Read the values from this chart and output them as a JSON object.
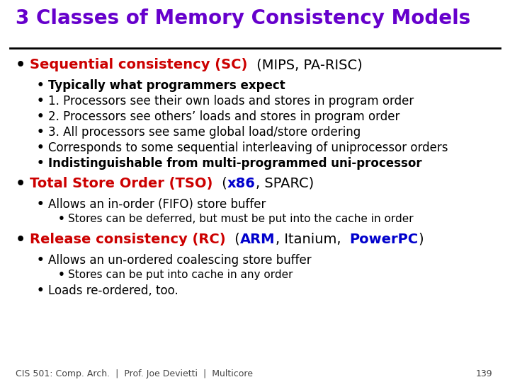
{
  "title": "3 Classes of Memory Consistency Models",
  "title_color": "#6600cc",
  "bg_color": "#ffffff",
  "footer": "CIS 501: Comp. Arch.  |  Prof. Joe Devietti  |  Multicore",
  "footer_page": "139",
  "title_fontsize": 20,
  "main_fontsize": 14,
  "sub1_fontsize": 12,
  "sub2_fontsize": 11,
  "footer_fontsize": 9,
  "sections": [
    {
      "parts": [
        {
          "text": "Sequential consistency (SC) ",
          "color": "#cc0000",
          "bold": true
        },
        {
          "text": " (MIPS, PA-RISC)",
          "color": "#000000",
          "bold": false
        }
      ],
      "sub": [
        {
          "indent": 1,
          "parts": [
            {
              "text": "Typically what programmers expect",
              "color": "#000000",
              "bold": true
            }
          ]
        },
        {
          "indent": 1,
          "parts": [
            {
              "text": "1. Processors see their own loads and stores in program order",
              "color": "#000000",
              "bold": false
            }
          ]
        },
        {
          "indent": 1,
          "parts": [
            {
              "text": "2. Processors see others’ loads and stores in program order",
              "color": "#000000",
              "bold": false
            }
          ]
        },
        {
          "indent": 1,
          "parts": [
            {
              "text": "3. All processors see same global load/store ordering",
              "color": "#000000",
              "bold": false
            }
          ]
        },
        {
          "indent": 1,
          "parts": [
            {
              "text": "Corresponds to some sequential interleaving of uniprocessor orders",
              "color": "#000000",
              "bold": false
            }
          ]
        },
        {
          "indent": 1,
          "parts": [
            {
              "text": "Indistinguishable from multi-programmed uni-processor",
              "color": "#000000",
              "bold": true
            }
          ]
        }
      ]
    },
    {
      "parts": [
        {
          "text": "Total Store Order (TSO) ",
          "color": "#cc0000",
          "bold": true
        },
        {
          "text": " (",
          "color": "#000000",
          "bold": false
        },
        {
          "text": "x86",
          "color": "#0000cc",
          "bold": true
        },
        {
          "text": ", SPARC)",
          "color": "#000000",
          "bold": false
        }
      ],
      "sub": [
        {
          "indent": 1,
          "parts": [
            {
              "text": "Allows an in-order (FIFO) store buffer",
              "color": "#000000",
              "bold": false
            }
          ]
        },
        {
          "indent": 2,
          "parts": [
            {
              "text": "Stores can be deferred, but must be put into the cache in order",
              "color": "#000000",
              "bold": false
            }
          ]
        }
      ]
    },
    {
      "parts": [
        {
          "text": "Release consistency (RC) ",
          "color": "#cc0000",
          "bold": true
        },
        {
          "text": " (",
          "color": "#000000",
          "bold": false
        },
        {
          "text": "ARM",
          "color": "#0000cc",
          "bold": true
        },
        {
          "text": ", Itanium,  ",
          "color": "#000000",
          "bold": false
        },
        {
          "text": "PowerPC",
          "color": "#0000cc",
          "bold": true
        },
        {
          "text": ")",
          "color": "#000000",
          "bold": false
        }
      ],
      "sub": [
        {
          "indent": 1,
          "parts": [
            {
              "text": "Allows an un-ordered coalescing store buffer",
              "color": "#000000",
              "bold": false
            }
          ]
        },
        {
          "indent": 2,
          "parts": [
            {
              "text": "Stores can be put into cache in any order",
              "color": "#000000",
              "bold": false
            }
          ]
        },
        {
          "indent": 1,
          "parts": [
            {
              "text": "Loads re-ordered, too.",
              "color": "#000000",
              "bold": false
            }
          ]
        }
      ]
    }
  ]
}
